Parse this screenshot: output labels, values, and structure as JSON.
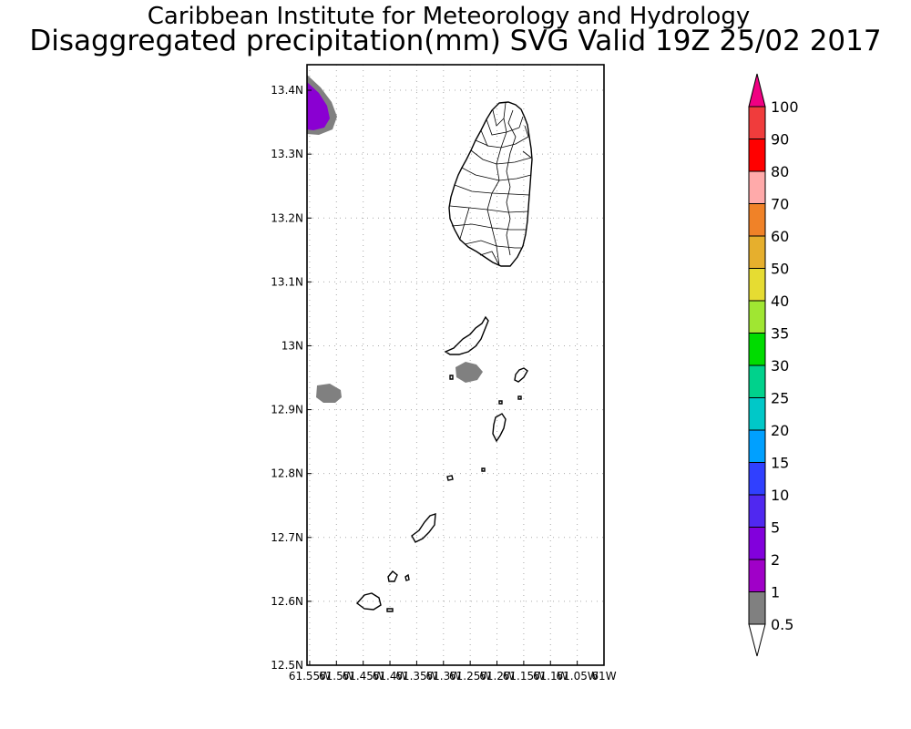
{
  "header": {
    "title": "Caribbean Institute for Meteorology and Hydrology",
    "subtitle": "Disaggregated precipitation(mm) SVG Valid 19Z 25/02 2017"
  },
  "map": {
    "lat_range": [
      12.5,
      13.44
    ],
    "lon_range": [
      -61.555,
      -61.0
    ],
    "lat_ticks": [
      {
        "value": 12.5,
        "label": "12.5N"
      },
      {
        "value": 12.6,
        "label": "12.6N"
      },
      {
        "value": 12.7,
        "label": "12.7N"
      },
      {
        "value": 12.8,
        "label": "12.8N"
      },
      {
        "value": 12.9,
        "label": "12.9N"
      },
      {
        "value": 13.0,
        "label": "13N"
      },
      {
        "value": 13.1,
        "label": "13.1N"
      },
      {
        "value": 13.2,
        "label": "13.2N"
      },
      {
        "value": 13.3,
        "label": "13.3N"
      },
      {
        "value": 13.4,
        "label": "13.4N"
      }
    ],
    "lon_ticks": [
      {
        "value": -61.55,
        "label": "61.55W"
      },
      {
        "value": -61.5,
        "label": "61.5W"
      },
      {
        "value": -61.45,
        "label": "61.45W"
      },
      {
        "value": -61.4,
        "label": "61.4W"
      },
      {
        "value": -61.35,
        "label": "61.35W"
      },
      {
        "value": -61.3,
        "label": "61.3W"
      },
      {
        "value": -61.25,
        "label": "61.25W"
      },
      {
        "value": -61.2,
        "label": "61.2W"
      },
      {
        "value": -61.15,
        "label": "61.15W"
      },
      {
        "value": -61.1,
        "label": "61.1W"
      },
      {
        "value": -61.05,
        "label": "61.05W"
      },
      {
        "value": -61.0,
        "label": "61W"
      }
    ],
    "grid_color": "#aaaaaa"
  },
  "colorbar": {
    "levels": [
      {
        "label": "0.5",
        "color": "#808080"
      },
      {
        "label": "1",
        "color": "#a000c8"
      },
      {
        "label": "2",
        "color": "#8200dc"
      },
      {
        "label": "5",
        "color": "#5028f0"
      },
      {
        "label": "10",
        "color": "#3040ff"
      },
      {
        "label": "15",
        "color": "#00a0ff"
      },
      {
        "label": "20",
        "color": "#00c8c8"
      },
      {
        "label": "25",
        "color": "#00d28c"
      },
      {
        "label": "30",
        "color": "#00dc00"
      },
      {
        "label": "35",
        "color": "#a0e632"
      },
      {
        "label": "40",
        "color": "#e6dc32"
      },
      {
        "label": "50",
        "color": "#e6af2d"
      },
      {
        "label": "60",
        "color": "#f08228"
      },
      {
        "label": "70",
        "color": "#ffaaaa"
      },
      {
        "label": "80",
        "color": "#ff0000"
      },
      {
        "label": "90",
        "color": "#f03c3c"
      },
      {
        "label": "100",
        "color": "#f00082"
      }
    ]
  }
}
